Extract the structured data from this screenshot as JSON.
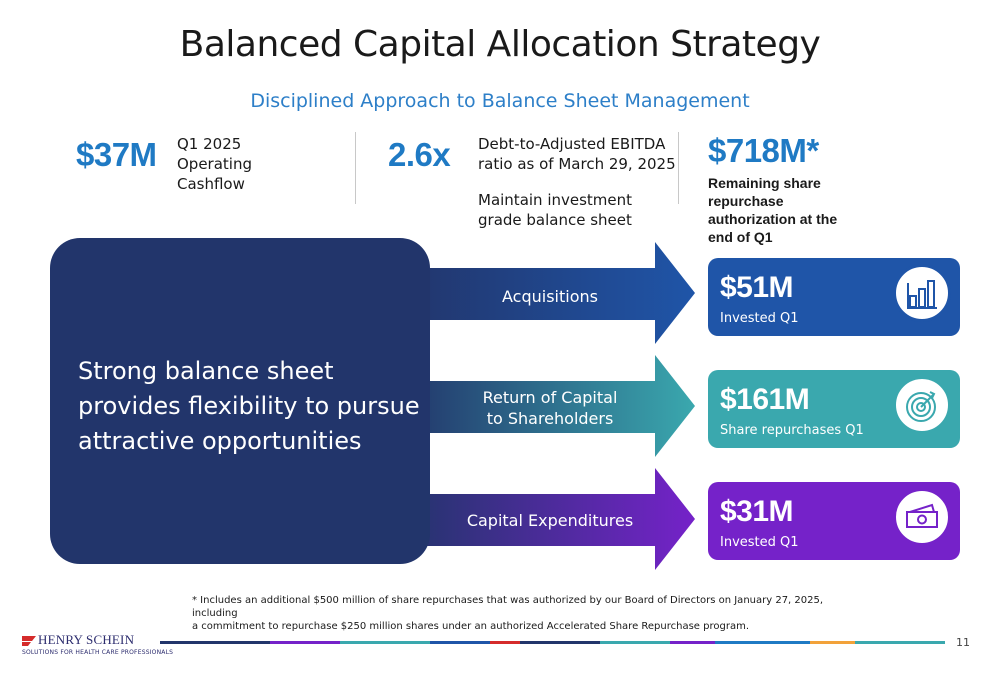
{
  "header": {
    "title": "Balanced Capital Allocation Strategy",
    "subtitle": "Disciplined Approach to Balance Sheet Management"
  },
  "kpis": {
    "cashflow": {
      "value": "$37M",
      "label_line1": "Q1 2025",
      "label_line2": "Operating",
      "label_line3": "Cashflow"
    },
    "leverage": {
      "value": "2.6x",
      "label_line1": "Debt-to-Adjusted EBITDA",
      "label_line2": "ratio as of March 29, 2025",
      "note_line1": "Maintain investment",
      "note_line2": "grade balance sheet"
    },
    "repurchase": {
      "value": "$718M*",
      "note_line1": "Remaining share",
      "note_line2": "repurchase",
      "note_line3": "authorization at the",
      "note_line4": "end of Q1"
    }
  },
  "main_box": {
    "line1": "Strong balance sheet",
    "line2": "provides flexibility to pursue",
    "line3": "attractive opportunities"
  },
  "allocations": [
    {
      "arrow_label": "Acquisitions",
      "arrow_label2": "",
      "value": "$51M",
      "sub": "Invested Q1",
      "icon": "bar-chart-icon",
      "color": "#1f55a8"
    },
    {
      "arrow_label": "Return of Capital",
      "arrow_label2": "to Shareholders",
      "value": "$161M",
      "sub": "Share repurchases Q1",
      "icon": "target-icon",
      "color": "#3aa8ae"
    },
    {
      "arrow_label": "Capital Expenditures",
      "arrow_label2": "",
      "value": "$31M",
      "sub": "Invested Q1",
      "icon": "cash-icon",
      "color": "#7522c9"
    }
  ],
  "footnote": {
    "line1": "* Includes an additional $500 million of share repurchases that was authorized by our Board of Directors on January 27, 2025, including",
    "line2": "a commitment to repurchase $250 million shares under an authorized Accelerated Share Repurchase program."
  },
  "footer": {
    "logo_name": "HENRY SCHEIN",
    "logo_tagline": "SOLUTIONS FOR HEALTH CARE PROFESSIONALS",
    "page_number": "11"
  },
  "colors": {
    "navy": "#22356b",
    "accent_blue": "#1f7ac4",
    "teal": "#3aa8ae",
    "purple": "#7522c9",
    "blue": "#1f55a8"
  }
}
